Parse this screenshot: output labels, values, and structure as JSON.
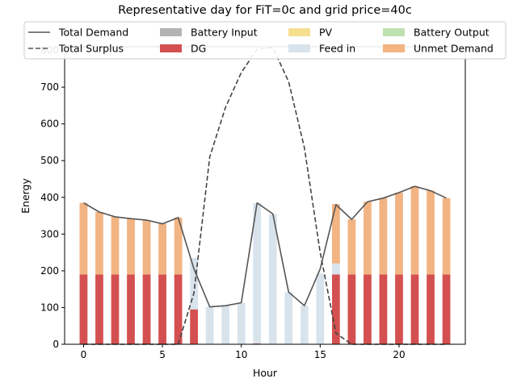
{
  "chart_data": {
    "type": "bar",
    "title": "Representative day for FiT=0c and grid price=40c",
    "xlabel": "Hour",
    "ylabel": "Energy",
    "xlim": [
      -1.2,
      24.2
    ],
    "ylim": [
      0,
      810
    ],
    "xticks": [
      0,
      5,
      10,
      15,
      20
    ],
    "yticks": [
      0,
      100,
      200,
      300,
      400,
      500,
      600,
      700,
      800
    ],
    "hours": [
      0,
      1,
      2,
      3,
      4,
      5,
      6,
      7,
      8,
      9,
      10,
      11,
      12,
      13,
      14,
      15,
      16,
      17,
      18,
      19,
      20,
      21,
      22,
      23
    ],
    "stack_order": [
      "Battery Input",
      "DG",
      "PV",
      "Feed in",
      "Battery Output",
      "Unmet Demand"
    ],
    "series": [
      {
        "name": "Battery Input",
        "color": "#b3b3b3",
        "values": [
          0,
          0,
          0,
          0,
          0,
          0,
          0,
          0,
          0,
          0,
          0,
          0,
          0,
          0,
          0,
          0,
          0,
          0,
          0,
          0,
          0,
          0,
          0,
          0
        ]
      },
      {
        "name": "DG",
        "color": "#d45050",
        "values": [
          190,
          190,
          190,
          190,
          190,
          190,
          190,
          95,
          0,
          0,
          0,
          2,
          0,
          0,
          0,
          0,
          190,
          190,
          190,
          190,
          190,
          190,
          190,
          190
        ]
      },
      {
        "name": "PV",
        "color": "#f5e08f",
        "values": [
          0,
          0,
          0,
          0,
          0,
          0,
          0,
          0,
          0,
          0,
          0,
          0,
          0,
          0,
          0,
          0,
          0,
          0,
          0,
          0,
          0,
          0,
          0,
          0
        ]
      },
      {
        "name": "Feed in",
        "color": "#d9e3ec",
        "values": [
          0,
          0,
          0,
          0,
          0,
          0,
          0,
          140,
          102,
          105,
          113,
          382,
          355,
          142,
          105,
          192,
          30,
          0,
          0,
          0,
          0,
          0,
          0,
          0
        ]
      },
      {
        "name": "Battery Output",
        "color": "#bfe0b0",
        "values": [
          0,
          0,
          0,
          0,
          0,
          0,
          0,
          0,
          0,
          0,
          0,
          0,
          0,
          0,
          0,
          0,
          0,
          0,
          0,
          0,
          0,
          0,
          0,
          0
        ]
      },
      {
        "name": "Unmet Demand",
        "color": "#f2b483",
        "values": [
          195,
          170,
          157,
          152,
          148,
          138,
          155,
          0,
          0,
          0,
          0,
          0,
          0,
          0,
          0,
          0,
          162,
          150,
          198,
          208,
          223,
          240,
          228,
          208
        ]
      }
    ],
    "lines": [
      {
        "name": "Total Demand",
        "style": "solid",
        "color": "#555555",
        "values": [
          385,
          360,
          347,
          342,
          338,
          328,
          345,
          205,
          102,
          105,
          113,
          385,
          355,
          142,
          105,
          205,
          380,
          340,
          388,
          398,
          413,
          430,
          418,
          398
        ]
      },
      {
        "name": "Total Surplus",
        "style": "dashed",
        "color": "#444444",
        "values": [
          0,
          0,
          0,
          0,
          0,
          0,
          0,
          140,
          510,
          645,
          740,
          803,
          808,
          715,
          535,
          250,
          30,
          0,
          0,
          0,
          0,
          0,
          0,
          0
        ]
      }
    ],
    "legend": {
      "position": "top",
      "entries": [
        {
          "name": "Total Demand",
          "kind": "line-solid"
        },
        {
          "name": "Battery Input",
          "kind": "patch",
          "color": "#b3b3b3"
        },
        {
          "name": "PV",
          "kind": "patch",
          "color": "#f5e08f"
        },
        {
          "name": "Battery Output",
          "kind": "patch",
          "color": "#bfe0b0"
        },
        {
          "name": "Total Surplus",
          "kind": "line-dashed"
        },
        {
          "name": "DG",
          "kind": "patch",
          "color": "#d45050"
        },
        {
          "name": "Feed in",
          "kind": "patch",
          "color": "#d9e3ec"
        },
        {
          "name": "Unmet Demand",
          "kind": "patch",
          "color": "#f2b483"
        }
      ]
    }
  }
}
